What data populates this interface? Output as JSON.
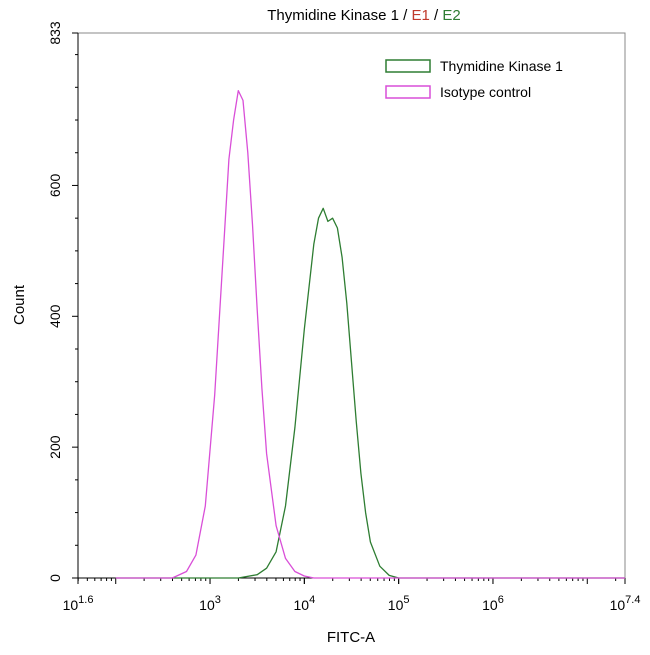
{
  "chart_data": {
    "type": "line",
    "title_parts": [
      {
        "text": "Thymidine Kinase 1",
        "color": "#000000"
      },
      {
        "text": " / ",
        "color": "#000000"
      },
      {
        "text": "E1",
        "color": "#c0392b"
      },
      {
        "text": " / ",
        "color": "#000000"
      },
      {
        "text": "E2",
        "color": "#2e7d32"
      }
    ],
    "xlabel": "FITC-A",
    "ylabel": "Count",
    "x_scale": "log10",
    "xlim": [
      1.6,
      7.4
    ],
    "ylim": [
      0,
      833
    ],
    "y_ticks": [
      0,
      200,
      400,
      600,
      833
    ],
    "y_tick_labels": [
      "0",
      "200",
      "400",
      "600",
      "833"
    ],
    "x_ticks": [
      {
        "exp": 1.6,
        "base": "10",
        "sup": "1.6"
      },
      {
        "exp": 3,
        "base": "10",
        "sup": "3"
      },
      {
        "exp": 4,
        "base": "10",
        "sup": "4"
      },
      {
        "exp": 5,
        "base": "10",
        "sup": "5"
      },
      {
        "exp": 6,
        "base": "10",
        "sup": "6"
      },
      {
        "exp": 7.4,
        "base": "10",
        "sup": "7.4"
      }
    ],
    "legend_position": "top-right",
    "series": [
      {
        "name": "Thymidine Kinase 1",
        "color": "#2e7d32",
        "x_exp": [
          2.0,
          3.3,
          3.5,
          3.6,
          3.7,
          3.8,
          3.9,
          4.0,
          4.1,
          4.15,
          4.2,
          4.25,
          4.3,
          4.35,
          4.4,
          4.45,
          4.5,
          4.55,
          4.6,
          4.65,
          4.7,
          4.8,
          4.9,
          5.0,
          7.4
        ],
        "y": [
          0,
          0,
          5,
          15,
          40,
          110,
          230,
          380,
          510,
          550,
          565,
          545,
          550,
          535,
          490,
          420,
          330,
          240,
          160,
          100,
          55,
          18,
          4,
          0,
          0
        ]
      },
      {
        "name": "Isotype control",
        "color": "#d94fd8",
        "x_exp": [
          2.0,
          2.6,
          2.75,
          2.85,
          2.95,
          3.05,
          3.15,
          3.2,
          3.25,
          3.3,
          3.35,
          3.4,
          3.45,
          3.5,
          3.55,
          3.6,
          3.7,
          3.8,
          3.9,
          4.0,
          4.1,
          7.4
        ],
        "y": [
          0,
          0,
          10,
          35,
          110,
          280,
          520,
          640,
          700,
          745,
          730,
          650,
          540,
          410,
          290,
          190,
          80,
          30,
          10,
          3,
          0,
          0
        ]
      }
    ]
  }
}
